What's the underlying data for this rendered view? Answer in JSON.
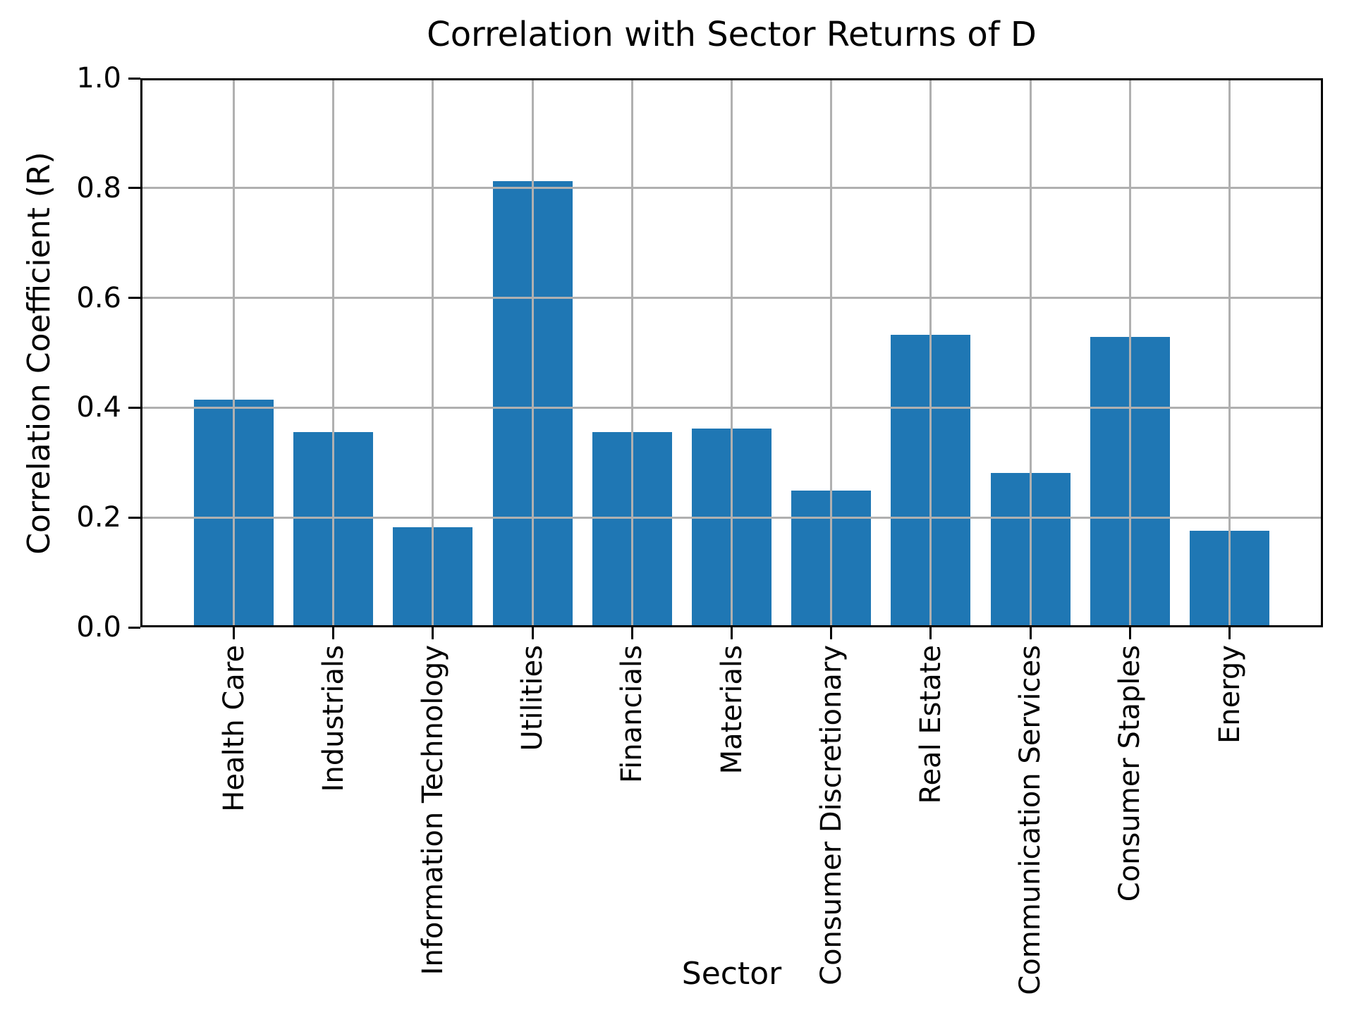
{
  "chart_data": {
    "type": "bar",
    "title": "Correlation with Sector Returns of D",
    "xlabel": "Sector",
    "ylabel": "Correlation Coefficient (R)",
    "categories": [
      "Health Care",
      "Industrials",
      "Information Technology",
      "Utilities",
      "Financials",
      "Materials",
      "Consumer Discretionary",
      "Real Estate",
      "Communication Services",
      "Consumer Staples",
      "Energy"
    ],
    "values": [
      0.415,
      0.355,
      0.182,
      0.813,
      0.355,
      0.362,
      0.249,
      0.533,
      0.281,
      0.529,
      0.176
    ],
    "ylim": [
      0.0,
      1.0
    ],
    "yticks": [
      0.0,
      0.2,
      0.4,
      0.6,
      0.8,
      1.0
    ],
    "ytick_labels": [
      "0.0",
      "0.2",
      "0.4",
      "0.6",
      "0.8",
      "1.0"
    ],
    "x_tick_rotation": 90,
    "grid": true,
    "legend": null,
    "bar_color": "#1f77b4",
    "grid_color": "#b0b0b0",
    "axis_color": "#000000",
    "background_color": "#ffffff"
  }
}
